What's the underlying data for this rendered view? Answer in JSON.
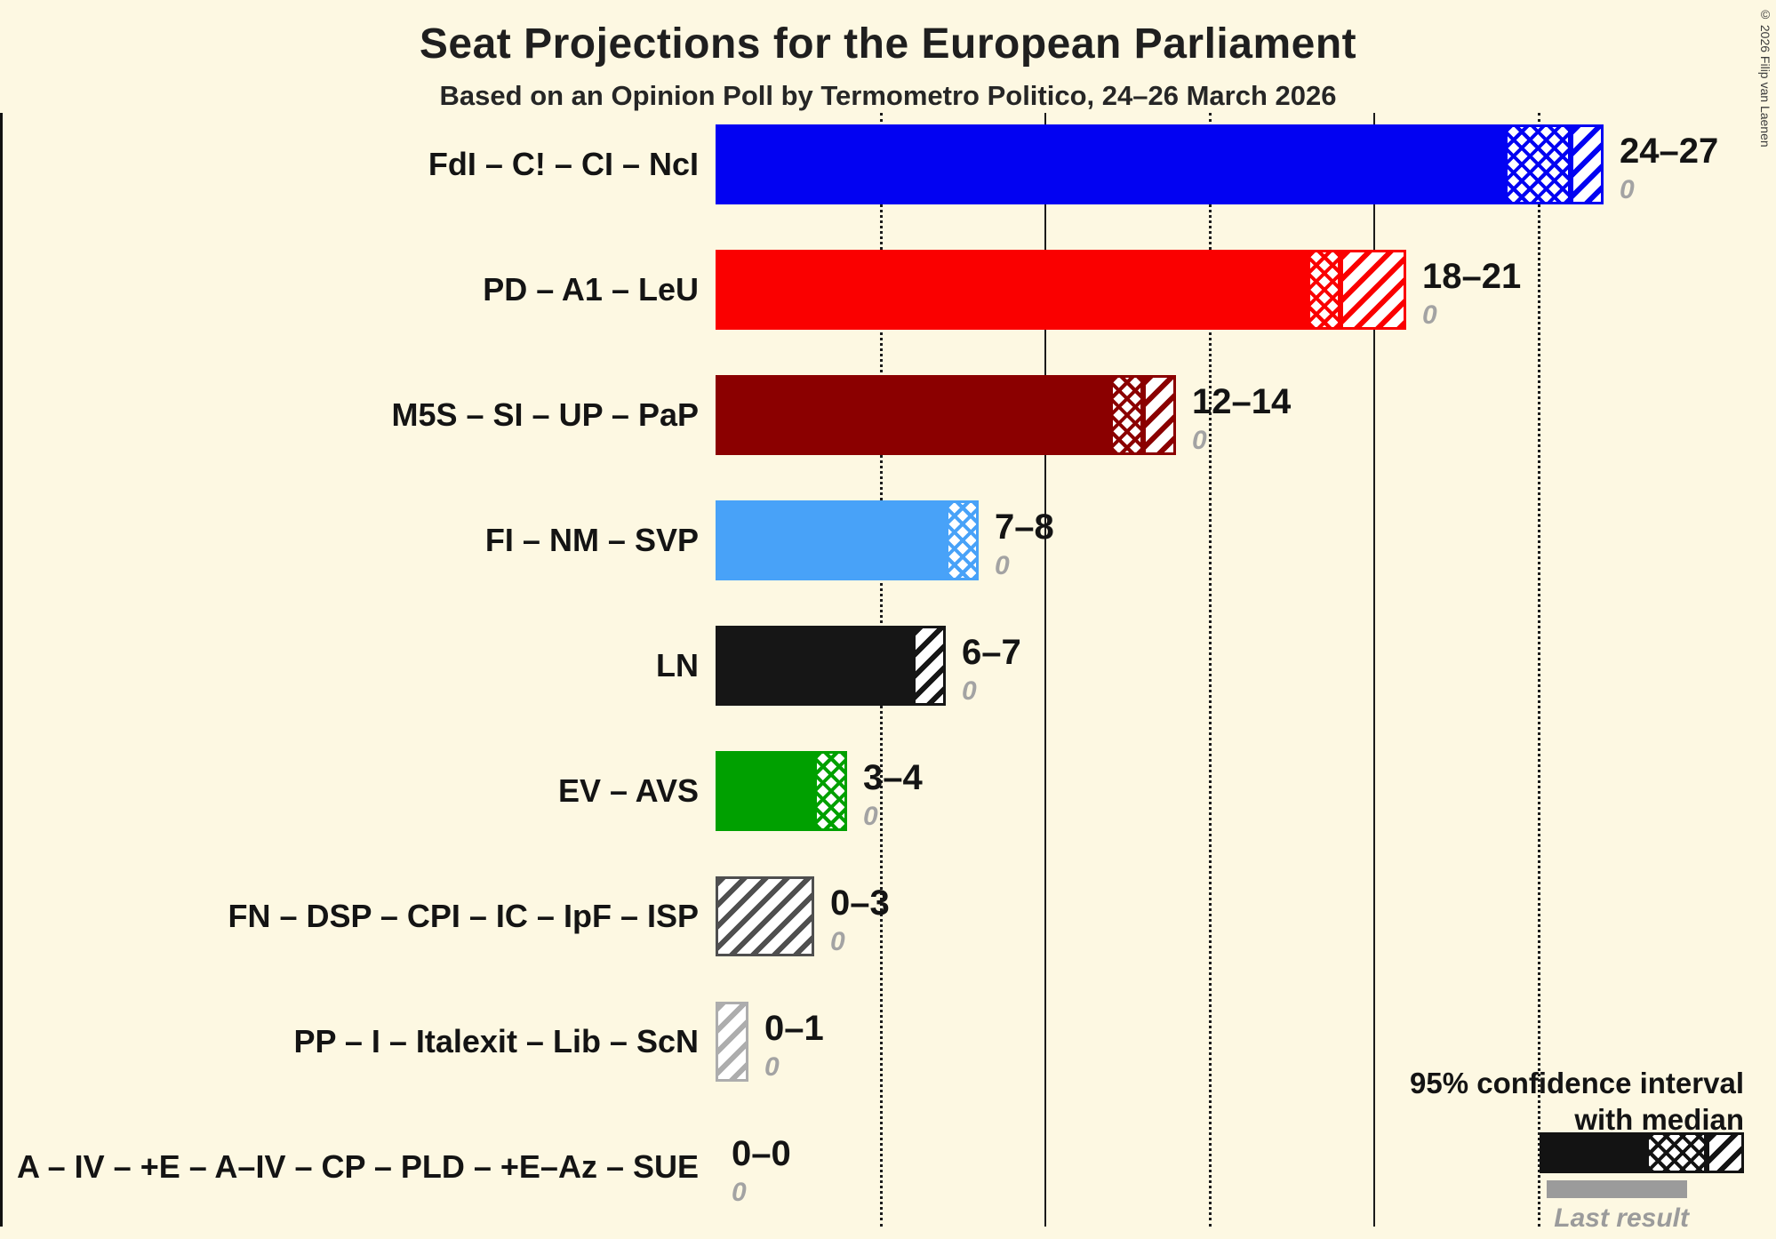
{
  "title": "Seat Projections for the European Parliament",
  "subtitle": "Based on an Opinion Poll by Termometro Politico, 24–26 March 2026",
  "copyright": "© 2026 Filip van Laenen",
  "legend": {
    "ci_line1": "95% confidence interval",
    "ci_line2": "with median",
    "last_result_label": "Last result"
  },
  "chart_data": {
    "type": "bar",
    "orientation": "horizontal",
    "unit": "seats",
    "x_axis": {
      "min": 0,
      "max": 27,
      "major_gridlines": [
        10,
        20
      ],
      "minor_gridlines": [
        5,
        15,
        25
      ]
    },
    "rows": [
      {
        "label": "FdI – C! – CI – NcI",
        "color": "#0202F2",
        "low": 24,
        "median": 26,
        "high": 27,
        "range_label": "24–27",
        "last_result": "0"
      },
      {
        "label": "PD – A1 – LeU",
        "color": "#FA0000",
        "low": 18,
        "median": 19,
        "high": 21,
        "range_label": "18–21",
        "last_result": "0"
      },
      {
        "label": "M5S – SI – UP – PaP",
        "color": "#8B0000",
        "low": 12,
        "median": 13,
        "high": 14,
        "range_label": "12–14",
        "last_result": "0"
      },
      {
        "label": "FI – NM – SVP",
        "color": "#48A2F8",
        "low": 7,
        "median": 8,
        "high": 8,
        "range_label": "7–8",
        "last_result": "0"
      },
      {
        "label": "LN",
        "color": "#161616",
        "low": 6,
        "median": 6,
        "high": 7,
        "range_label": "6–7",
        "last_result": "0"
      },
      {
        "label": "EV – AVS",
        "color": "#00A000",
        "low": 3,
        "median": 4,
        "high": 4,
        "range_label": "3–4",
        "last_result": "0"
      },
      {
        "label": "FN – DSP – CPI – IC – IpF – ISP",
        "color": "#4F4F4F",
        "low": 0,
        "median": 0,
        "high": 3,
        "range_label": "0–3",
        "last_result": "0"
      },
      {
        "label": "PP – I – Italexit – Lib – ScN",
        "color": "#ADADAD",
        "low": 0,
        "median": 0,
        "high": 1,
        "range_label": "0–1",
        "last_result": "0"
      },
      {
        "label": "A – IV – +E – A–IV – CP – PLD – +E–Az – SUE",
        "color": "#888888",
        "low": 0,
        "median": 0,
        "high": 0,
        "range_label": "0–0",
        "last_result": "0"
      }
    ]
  }
}
